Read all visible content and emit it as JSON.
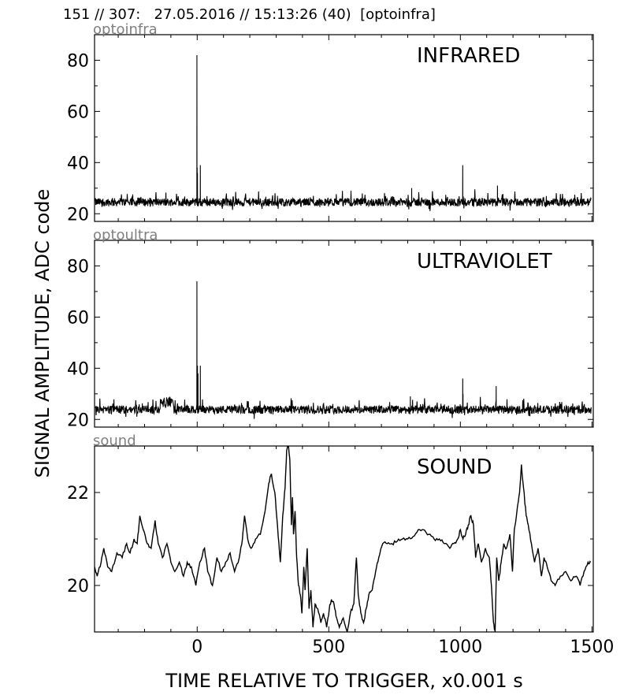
{
  "header": {
    "record": "151 // 307:",
    "datetime": "27.05.2016 // 15:13:26 (40)",
    "channel": "[optoinfra]"
  },
  "xlabel": "TIME RELATIVE TO TRIGGER,   x0.001 s",
  "ylabel": "SIGNAL AMPLITUDE,  ADC code",
  "chart_data": [
    {
      "type": "line",
      "name": "optoinfra",
      "title": "INFRARED",
      "xlim": [
        -390,
        1505
      ],
      "ylim": [
        17,
        90
      ],
      "xticks": [
        0,
        500,
        1000,
        1500
      ],
      "yticks": [
        20,
        40,
        60,
        80
      ],
      "baseline": 24.5,
      "noise": 1.6,
      "spikes": [
        [
          -1,
          82
        ],
        [
          0,
          38
        ],
        [
          1,
          36
        ],
        [
          12,
          39
        ],
        [
          1009,
          39
        ],
        [
          1141,
          31
        ],
        [
          305,
          27
        ],
        [
          815,
          30
        ]
      ]
    },
    {
      "type": "line",
      "name": "optoultra",
      "title": "ULTRAVIOLET",
      "xlim": [
        -390,
        1505
      ],
      "ylim": [
        17,
        90
      ],
      "xticks": [
        0,
        500,
        1000,
        1500
      ],
      "yticks": [
        20,
        40,
        60,
        80
      ],
      "baseline": 23.8,
      "noise": 1.6,
      "spikes": [
        [
          -1,
          74
        ],
        [
          1,
          41
        ],
        [
          3,
          38
        ],
        [
          12,
          41
        ],
        [
          1009,
          36
        ],
        [
          1136,
          33
        ],
        [
          1010,
          30
        ],
        [
          810,
          29
        ]
      ],
      "bump": [
        -140,
        -90,
        28
      ]
    },
    {
      "type": "line",
      "name": "sound",
      "title": "SOUND",
      "xlim": [
        -390,
        1505
      ],
      "ylim": [
        19,
        23
      ],
      "xticks": [
        0,
        500,
        1000,
        1500
      ],
      "yticks": [
        20,
        22
      ],
      "points": [
        [
          -390,
          20.4
        ],
        [
          -380,
          20.2
        ],
        [
          -365,
          20.5
        ],
        [
          -355,
          20.8
        ],
        [
          -340,
          20.4
        ],
        [
          -325,
          20.3
        ],
        [
          -305,
          20.7
        ],
        [
          -285,
          20.6
        ],
        [
          -268,
          20.9
        ],
        [
          -255,
          20.7
        ],
        [
          -240,
          21.0
        ],
        [
          -228,
          20.9
        ],
        [
          -218,
          21.5
        ],
        [
          -205,
          21.2
        ],
        [
          -190,
          20.9
        ],
        [
          -175,
          20.8
        ],
        [
          -160,
          21.4
        ],
        [
          -148,
          20.9
        ],
        [
          -132,
          20.6
        ],
        [
          -115,
          20.9
        ],
        [
          -100,
          20.5
        ],
        [
          -85,
          20.3
        ],
        [
          -68,
          20.5
        ],
        [
          -52,
          20.2
        ],
        [
          -38,
          20.5
        ],
        [
          -22,
          20.4
        ],
        [
          -5,
          20.0
        ],
        [
          10,
          20.5
        ],
        [
          28,
          20.8
        ],
        [
          40,
          20.3
        ],
        [
          58,
          20.0
        ],
        [
          75,
          20.6
        ],
        [
          92,
          20.3
        ],
        [
          108,
          20.5
        ],
        [
          125,
          20.7
        ],
        [
          142,
          20.3
        ],
        [
          160,
          20.6
        ],
        [
          172,
          21.0
        ],
        [
          180,
          21.5
        ],
        [
          192,
          21.0
        ],
        [
          205,
          20.8
        ],
        [
          222,
          21.0
        ],
        [
          240,
          21.1
        ],
        [
          258,
          21.6
        ],
        [
          272,
          22.2
        ],
        [
          282,
          22.4
        ],
        [
          295,
          22.0
        ],
        [
          305,
          21.3
        ],
        [
          316,
          20.5
        ],
        [
          325,
          21.5
        ],
        [
          334,
          22.1
        ],
        [
          340,
          22.9
        ],
        [
          347,
          23.0
        ],
        [
          352,
          22.7
        ],
        [
          358,
          21.3
        ],
        [
          362,
          21.9
        ],
        [
          366,
          21.1
        ],
        [
          372,
          21.6
        ],
        [
          378,
          20.6
        ],
        [
          385,
          20.0
        ],
        [
          392,
          19.8
        ],
        [
          398,
          19.4
        ],
        [
          405,
          20.4
        ],
        [
          410,
          19.9
        ],
        [
          418,
          20.8
        ],
        [
          425,
          19.5
        ],
        [
          432,
          19.9
        ],
        [
          440,
          19.1
        ],
        [
          448,
          19.6
        ],
        [
          458,
          19.5
        ],
        [
          470,
          19.2
        ],
        [
          480,
          19.4
        ],
        [
          492,
          19.1
        ],
        [
          502,
          19.5
        ],
        [
          510,
          19.7
        ],
        [
          520,
          19.6
        ],
        [
          530,
          19.3
        ],
        [
          540,
          19.1
        ],
        [
          555,
          19.3
        ],
        [
          570,
          19.0
        ],
        [
          582,
          19.4
        ],
        [
          595,
          19.6
        ],
        [
          605,
          20.6
        ],
        [
          612,
          19.8
        ],
        [
          622,
          19.4
        ],
        [
          632,
          19.2
        ],
        [
          642,
          19.5
        ],
        [
          652,
          19.8
        ],
        [
          665,
          19.9
        ],
        [
          678,
          20.3
        ],
        [
          690,
          20.6
        ],
        [
          705,
          20.9
        ],
        [
          722,
          20.9
        ],
        [
          740,
          20.9
        ],
        [
          760,
          20.95
        ],
        [
          780,
          21.0
        ],
        [
          800,
          21.0
        ],
        [
          820,
          21.05
        ],
        [
          840,
          21.2
        ],
        [
          860,
          21.2
        ],
        [
          880,
          21.1
        ],
        [
          900,
          21.0
        ],
        [
          920,
          21.0
        ],
        [
          940,
          20.9
        ],
        [
          960,
          20.8
        ],
        [
          975,
          20.9
        ],
        [
          990,
          21.0
        ],
        [
          1000,
          21.2
        ],
        [
          1010,
          21.0
        ],
        [
          1020,
          21.1
        ],
        [
          1030,
          21.3
        ],
        [
          1040,
          21.5
        ],
        [
          1050,
          21.3
        ],
        [
          1058,
          20.6
        ],
        [
          1068,
          20.9
        ],
        [
          1080,
          20.5
        ],
        [
          1095,
          20.8
        ],
        [
          1110,
          20.6
        ],
        [
          1118,
          20.0
        ],
        [
          1126,
          19.2
        ],
        [
          1132,
          19.0
        ],
        [
          1138,
          20.6
        ],
        [
          1146,
          20.1
        ],
        [
          1155,
          20.5
        ],
        [
          1165,
          20.9
        ],
        [
          1175,
          20.8
        ],
        [
          1188,
          21.1
        ],
        [
          1198,
          20.3
        ],
        [
          1205,
          21.2
        ],
        [
          1215,
          21.6
        ],
        [
          1225,
          22.0
        ],
        [
          1232,
          22.6
        ],
        [
          1240,
          22.1
        ],
        [
          1250,
          21.5
        ],
        [
          1258,
          21.3
        ],
        [
          1270,
          20.9
        ],
        [
          1282,
          20.5
        ],
        [
          1295,
          20.8
        ],
        [
          1308,
          20.2
        ],
        [
          1318,
          20.6
        ],
        [
          1330,
          20.4
        ],
        [
          1345,
          20.1
        ],
        [
          1360,
          20.0
        ],
        [
          1380,
          20.2
        ],
        [
          1400,
          20.3
        ],
        [
          1420,
          20.1
        ],
        [
          1440,
          20.2
        ],
        [
          1455,
          20.0
        ],
        [
          1470,
          20.3
        ],
        [
          1485,
          20.5
        ],
        [
          1495,
          20.5
        ]
      ]
    }
  ]
}
